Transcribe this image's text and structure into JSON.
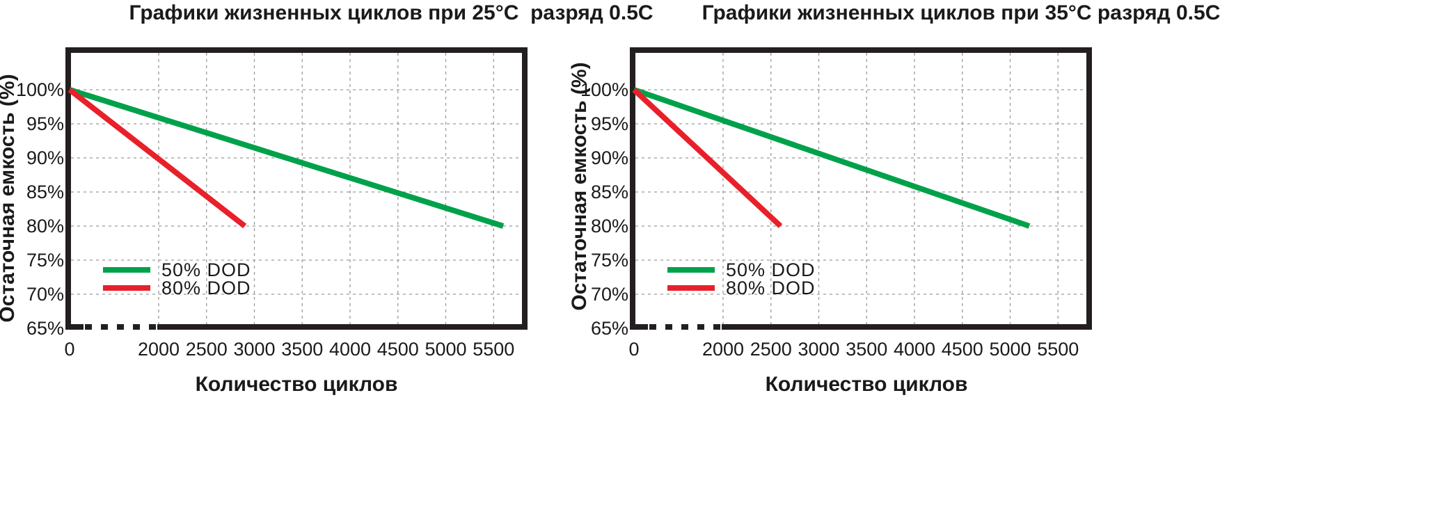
{
  "chart_data": [
    {
      "type": "line",
      "title": "Графики жизненных циклов при 25°C  разряд 0.5C",
      "xlabel": "Количество циклов",
      "ylabel": "Остаточная емкость (%)",
      "x_ticks": [
        0,
        2000,
        2500,
        3000,
        3500,
        4000,
        4500,
        5000,
        5500
      ],
      "x_tick_labels": [
        "0",
        "2000",
        "2500",
        "3000",
        "3500",
        "4000",
        "4500",
        "5000",
        "5500"
      ],
      "x_axis_break": "0–2000",
      "y_ticks": [
        65,
        70,
        75,
        80,
        85,
        90,
        95,
        100
      ],
      "y_tick_labels": [
        "65%",
        "70%",
        "75%",
        "80%",
        "85%",
        "90%",
        "95%",
        "100%"
      ],
      "ylim": [
        65,
        105
      ],
      "grid": true,
      "legend_position": "bottom-left",
      "series": [
        {
          "name": "50% DOD",
          "legend_label": "50% DOD",
          "color": "#00a14b",
          "x": [
            0,
            5600
          ],
          "y": [
            100,
            80
          ]
        },
        {
          "name": "80%  DOD",
          "legend_label": "80%  DOD",
          "color": "#e8202a",
          "x": [
            0,
            2900
          ],
          "y": [
            100,
            80
          ]
        }
      ]
    },
    {
      "type": "line",
      "title": "Графики жизненных циклов при 35°C разряд 0.5C",
      "xlabel": "Количество циклов",
      "ylabel": "Остаточная емкость (%)",
      "x_ticks": [
        0,
        2000,
        2500,
        3000,
        3500,
        4000,
        4500,
        5000,
        5500
      ],
      "x_tick_labels": [
        "0",
        "2000",
        "2500",
        "3000",
        "3500",
        "4000",
        "4500",
        "5000",
        "5500"
      ],
      "x_axis_break": "0–2000",
      "y_ticks": [
        65,
        70,
        75,
        80,
        85,
        90,
        95,
        100
      ],
      "y_tick_labels": [
        "65%",
        "70%",
        "75%",
        "80%",
        "85%",
        "90%",
        "95%",
        "100%"
      ],
      "ylim": [
        65,
        105
      ],
      "grid": true,
      "legend_position": "bottom-left",
      "series": [
        {
          "name": "50% DOD",
          "legend_label": "50% DOD",
          "color": "#00a14b",
          "x": [
            0,
            5200
          ],
          "y": [
            100,
            80
          ]
        },
        {
          "name": "80%  DOD",
          "legend_label": "80%  DOD",
          "color": "#e8202a",
          "x": [
            0,
            2600
          ],
          "y": [
            100,
            80
          ]
        }
      ]
    }
  ]
}
